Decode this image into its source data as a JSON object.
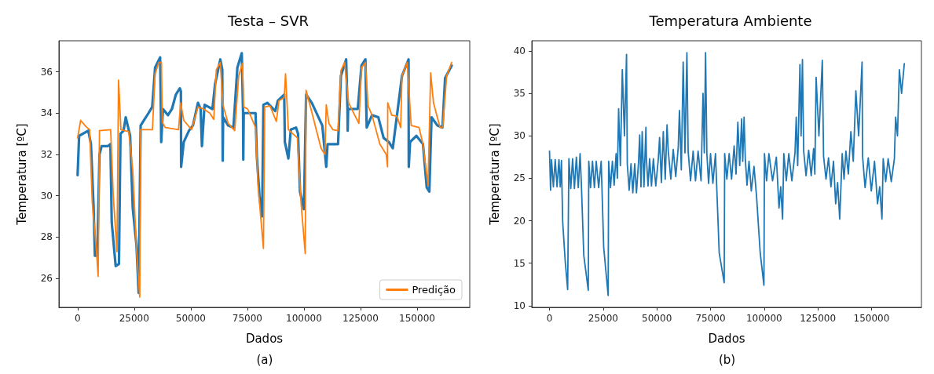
{
  "chart_data": [
    {
      "type": "line",
      "title": "Testa – SVR",
      "xlabel": "Dados",
      "ylabel": "Temperatura [ºC]",
      "annotations": [
        "(a)"
      ],
      "xlim": [
        -8250,
        173250
      ],
      "xticks": [
        0,
        25000,
        50000,
        75000,
        100000,
        125000,
        150000
      ],
      "ylim": [
        24.6,
        37.5
      ],
      "yticks": [
        26,
        28,
        30,
        32,
        34,
        36
      ],
      "grid": false,
      "legend": "bottom right",
      "series": [
        {
          "color": "#1f77b4",
          "x": [
            0,
            680,
            4740,
            5900,
            7060,
            7640,
            8700,
            9670,
            10640,
            13340,
            14500,
            15090,
            16830,
            18280,
            18950,
            20310,
            21270,
            23210,
            24370,
            26010,
            26980,
            27850,
            29590,
            31330,
            32970,
            34230,
            36460,
            36840,
            36940,
            37710,
            39940,
            41680,
            43420,
            45160,
            45640,
            45740,
            46900,
            49220,
            50960,
            53190,
            54350,
            54930,
            56090,
            59570,
            60730,
            63050,
            63920,
            64110,
            64300,
            66530,
            68850,
            70590,
            72530,
            73110,
            73200,
            73400,
            76100,
            78620,
            79200,
            80360,
            81520,
            82100,
            83840,
            87320,
            88480,
            91280,
            91570,
            93120,
            94190,
            96510,
            97380,
            98250,
            99990,
            100950,
            103470,
            108110,
            109850,
            110430,
            115070,
            116330,
            118650,
            119230,
            119330,
            119520,
            120880,
            123780,
            125420,
            127160,
            127550,
            127740,
            130060,
            132870,
            135190,
            137510,
            139250,
            143310,
            146210,
            146310,
            146890,
            149690,
            152590,
            154240,
            155400,
            156360,
            158970,
            161200,
            162360,
            165260
          ],
          "values": [
            31.0,
            32.9,
            33.15,
            32.5,
            29.5,
            27.1,
            27.1,
            32.0,
            32.4,
            32.4,
            32.5,
            28.7,
            26.6,
            26.7,
            33.0,
            33.15,
            33.8,
            32.9,
            29.4,
            27.6,
            25.3,
            33.4,
            33.7,
            34.0,
            34.3,
            36.2,
            36.7,
            33.8,
            32.6,
            34.2,
            33.9,
            34.2,
            34.9,
            35.2,
            35.05,
            31.4,
            32.6,
            33.15,
            33.4,
            34.5,
            34.2,
            32.4,
            34.4,
            34.2,
            35.4,
            36.6,
            36.1,
            31.7,
            33.8,
            33.4,
            33.3,
            36.2,
            36.9,
            34.0,
            31.75,
            34.0,
            34.0,
            34.0,
            31.9,
            30.0,
            29.0,
            34.4,
            34.5,
            34.1,
            34.6,
            34.9,
            32.6,
            31.8,
            33.2,
            33.3,
            33.0,
            30.2,
            29.35,
            34.9,
            34.5,
            33.4,
            31.4,
            32.5,
            32.5,
            35.8,
            36.6,
            34.2,
            33.15,
            34.2,
            34.2,
            34.2,
            36.3,
            36.6,
            34.2,
            33.3,
            33.9,
            33.8,
            32.8,
            32.6,
            32.3,
            35.8,
            36.6,
            31.4,
            32.6,
            32.9,
            32.5,
            30.4,
            30.2,
            33.8,
            33.4,
            33.3,
            35.7,
            36.3
          ]
        },
        {
          "name": "Predição",
          "color": "#ff7f0e",
          "x": [
            0,
            1350,
            3670,
            5320,
            6470,
            8220,
            9090,
            9670,
            14600,
            15760,
            17410,
            18080,
            19150,
            22630,
            24370,
            26010,
            27460,
            27850,
            33070,
            34230,
            35880,
            37040,
            37420,
            38780,
            44580,
            45550,
            46900,
            50380,
            53190,
            55600,
            58410,
            60150,
            61310,
            63050,
            64210,
            66530,
            69430,
            71170,
            72820,
            73400,
            75140,
            78620,
            79780,
            82100,
            82680,
            85000,
            87800,
            88960,
            91280,
            91870,
            93120,
            97090,
            98830,
            100570,
            100950,
            104050,
            105210,
            107530,
            109270,
            109850,
            111010,
            112750,
            115070,
            116330,
            117970,
            119710,
            124260,
            125420,
            127160,
            128320,
            130060,
            133540,
            136350,
            136930,
            137020,
            138760,
            141090,
            142730,
            143310,
            145630,
            147370,
            150850,
            152590,
            154820,
            155980,
            157230,
            160140,
            161300,
            163040,
            165260
          ],
          "values": [
            32.8,
            33.65,
            33.35,
            33.2,
            29.7,
            27.5,
            26.1,
            33.15,
            33.2,
            30.0,
            27.3,
            35.6,
            33.2,
            33.1,
            31.25,
            27.45,
            25.1,
            33.2,
            33.2,
            35.9,
            36.45,
            36.45,
            33.55,
            33.3,
            33.2,
            34.5,
            33.65,
            33.2,
            34.3,
            34.2,
            34.0,
            33.7,
            36.1,
            36.45,
            34.4,
            33.5,
            33.15,
            35.8,
            36.4,
            34.3,
            34.2,
            33.3,
            30.4,
            27.45,
            34.3,
            34.35,
            33.6,
            34.6,
            34.75,
            35.9,
            33.2,
            32.8,
            29.5,
            27.2,
            35.1,
            33.8,
            33.3,
            32.3,
            32.0,
            34.4,
            33.5,
            33.2,
            33.15,
            36.05,
            36.45,
            34.5,
            33.5,
            36.2,
            36.45,
            34.35,
            33.9,
            32.5,
            32.0,
            31.4,
            34.5,
            33.9,
            33.85,
            33.3,
            35.8,
            36.45,
            33.4,
            33.3,
            32.5,
            30.5,
            35.95,
            34.5,
            33.3,
            33.3,
            35.8,
            36.45
          ]
        }
      ]
    },
    {
      "type": "line",
      "title": "Temperatura Ambiente",
      "xlabel": "Dados",
      "ylabel": "Temperatura [ºC]",
      "annotations": [
        "(b)"
      ],
      "xlim": [
        -8250,
        173250
      ],
      "xticks": [
        0,
        25000,
        50000,
        75000,
        100000,
        125000,
        150000
      ],
      "ylim": [
        9.8,
        41.2
      ],
      "yticks": [
        10,
        15,
        20,
        25,
        30,
        35,
        40
      ],
      "grid": false,
      "series": [
        {
          "color": "#1f77b4",
          "x": [
            0,
            500,
            930,
            1800,
            2660,
            3500,
            4400,
            5000,
            5560,
            6130,
            7290,
            8450,
            9030,
            9900,
            10760,
            11600,
            12500,
            13400,
            14240,
            14810,
            15970,
            18060,
            18290,
            19100,
            20020,
            20900,
            21760,
            22900,
            24070,
            25230,
            27310,
            27550,
            28400,
            29280,
            30100,
            31020,
            31600,
            32180,
            33000,
            33910,
            34900,
            35880,
            36230,
            37100,
            37960,
            38800,
            39700,
            40500,
            41440,
            42010,
            42600,
            43170,
            44000,
            44910,
            45140,
            45900,
            46640,
            47500,
            48380,
            49500,
            50690,
            51270,
            52100,
            53010,
            53900,
            54750,
            55320,
            56500,
            57640,
            58800,
            59950,
            60530,
            61400,
            62270,
            63100,
            64000,
            64580,
            65700,
            66900,
            68000,
            69210,
            70600,
            71500,
            72100,
            72690,
            73300,
            74100,
            75000,
            76100,
            77310,
            79050,
            81370,
            81600,
            82600,
            83680,
            84800,
            86000,
            86900,
            87730,
            88600,
            89500,
            90000,
            90630,
            91200,
            92000,
            92940,
            94000,
            95260,
            96410,
            98150,
            99880,
            100120,
            101100,
            102200,
            103900,
            105670,
            106900,
            107700,
            108560,
            109140,
            110300,
            111460,
            112900,
            114350,
            114930,
            115600,
            116660,
            117200,
            117820,
            118400,
            119500,
            120710,
            121900,
            123030,
            123600,
            124190,
            125500,
            127080,
            127660,
            128800,
            129970,
            131100,
            132290,
            133300,
            134200,
            135180,
            136340,
            137200,
            138080,
            139200,
            140390,
            141500,
            142710,
            144000,
            145600,
            145830,
            147000,
            148490,
            149900,
            151390,
            152800,
            153800,
            154860,
            155440,
            156600,
            157750,
            159200,
            160650,
            161230,
            162100,
            162970,
            164000,
            165280
          ],
          "values": [
            28.2,
            23.6,
            27.2,
            24.0,
            27.2,
            24.0,
            27.2,
            24.0,
            27.1,
            19.9,
            15.3,
            11.9,
            27.3,
            23.8,
            27.3,
            23.8,
            27.5,
            23.9,
            27.9,
            24.5,
            15.9,
            11.8,
            27.0,
            23.9,
            27.0,
            23.9,
            27.0,
            23.9,
            27.0,
            16.9,
            11.2,
            27.0,
            23.9,
            27.0,
            24.2,
            27.9,
            25.0,
            33.2,
            26.5,
            37.8,
            30.0,
            39.6,
            26.7,
            23.6,
            26.7,
            23.3,
            26.7,
            23.3,
            26.8,
            30.1,
            24.0,
            30.5,
            24.0,
            31.0,
            27.3,
            24.1,
            27.3,
            24.1,
            27.3,
            24.1,
            27.3,
            29.8,
            24.5,
            30.5,
            24.9,
            31.3,
            28.2,
            24.9,
            28.4,
            25.2,
            28.6,
            33.0,
            26.0,
            38.7,
            28.0,
            39.8,
            28.2,
            24.7,
            28.2,
            24.7,
            28.2,
            24.7,
            35.0,
            28.0,
            39.8,
            27.9,
            24.4,
            27.9,
            24.4,
            27.9,
            16.2,
            12.7,
            27.9,
            24.9,
            27.9,
            24.9,
            28.8,
            25.5,
            31.6,
            26.5,
            32.0,
            27.0,
            32.2,
            27.3,
            24.2,
            27.0,
            23.5,
            26.4,
            23.0,
            16.2,
            12.4,
            27.9,
            24.7,
            27.9,
            24.7,
            27.5,
            21.5,
            24.0,
            20.2,
            27.9,
            24.7,
            27.9,
            24.7,
            28.0,
            32.2,
            26.5,
            38.4,
            30.0,
            39.0,
            28.2,
            25.3,
            28.3,
            25.3,
            28.5,
            25.5,
            36.9,
            30.0,
            38.9,
            27.6,
            24.9,
            27.4,
            24.0,
            27.0,
            22.0,
            24.5,
            20.2,
            27.9,
            24.9,
            28.2,
            25.5,
            30.5,
            27.0,
            35.3,
            30.0,
            38.7,
            27.6,
            23.9,
            27.4,
            23.5,
            27.0,
            22.0,
            24.0,
            20.2,
            27.3,
            24.6,
            27.3,
            24.6,
            27.3,
            32.2,
            30.0,
            37.8,
            35.0,
            38.5
          ]
        }
      ]
    }
  ]
}
